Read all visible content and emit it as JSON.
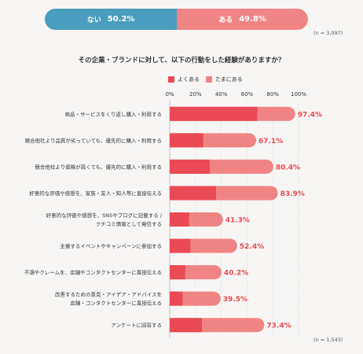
{
  "top": {
    "no_label": "ない",
    "no_value": "50.2%",
    "yes_label": "ある",
    "yes_value": "49.8%",
    "n": "(n = 3,097)",
    "no_share": 50.2,
    "colors": {
      "no": "#4a9dbe",
      "yes": "#f08484"
    }
  },
  "question": "その企業・ブランドに対して、以下の行動をした経験がありますか？",
  "bottom_n": "(n = 1,543)",
  "chart_data": {
    "type": "bar",
    "orientation": "horizontal",
    "stacked": true,
    "xlim": [
      0,
      100
    ],
    "x_ticks": [
      "0%",
      "20%",
      "40%",
      "60%",
      "80%",
      "100%"
    ],
    "legend_position": "top",
    "colors": {
      "often": "#ea4a53",
      "sometimes": "#f08484"
    },
    "categories": [
      [
        "商品・サービスをくり返し購入・利用する"
      ],
      [
        "競合他社より品質が劣っていても、優先的に購入・利用する"
      ],
      [
        "競合他社より価格が高くても、優先的に購入・利用する"
      ],
      [
        "好意的な評価や感想を、家族・友人・知人等に直接伝える"
      ],
      [
        "好意的な評価や感想を、SNSやブログに記載する /",
        "クチコミ情報として発信する"
      ],
      [
        "主催するイベントやキャンペーンに参加する"
      ],
      [
        "不満やクレームを、店舗やコンタクトセンターに直接伝える"
      ],
      [
        "改善するための意見・アイデア・アドバイスを",
        "店舗・コンタクトセンターに直接伝える"
      ],
      [
        "アンケートに回答する"
      ]
    ],
    "series": [
      {
        "name": "よくある",
        "values": [
          68,
          26,
          31,
          36,
          15,
          16,
          12,
          10,
          25
        ]
      },
      {
        "name": "たまにある",
        "values": [
          29.4,
          41.1,
          49.4,
          47.9,
          26.3,
          36.4,
          28.2,
          29.5,
          48.4
        ]
      }
    ],
    "totals": [
      "97.4%",
      "67.1%",
      "80.4%",
      "83.9%",
      "41.3%",
      "52.4%",
      "40.2%",
      "39.5%",
      "73.4%"
    ]
  }
}
